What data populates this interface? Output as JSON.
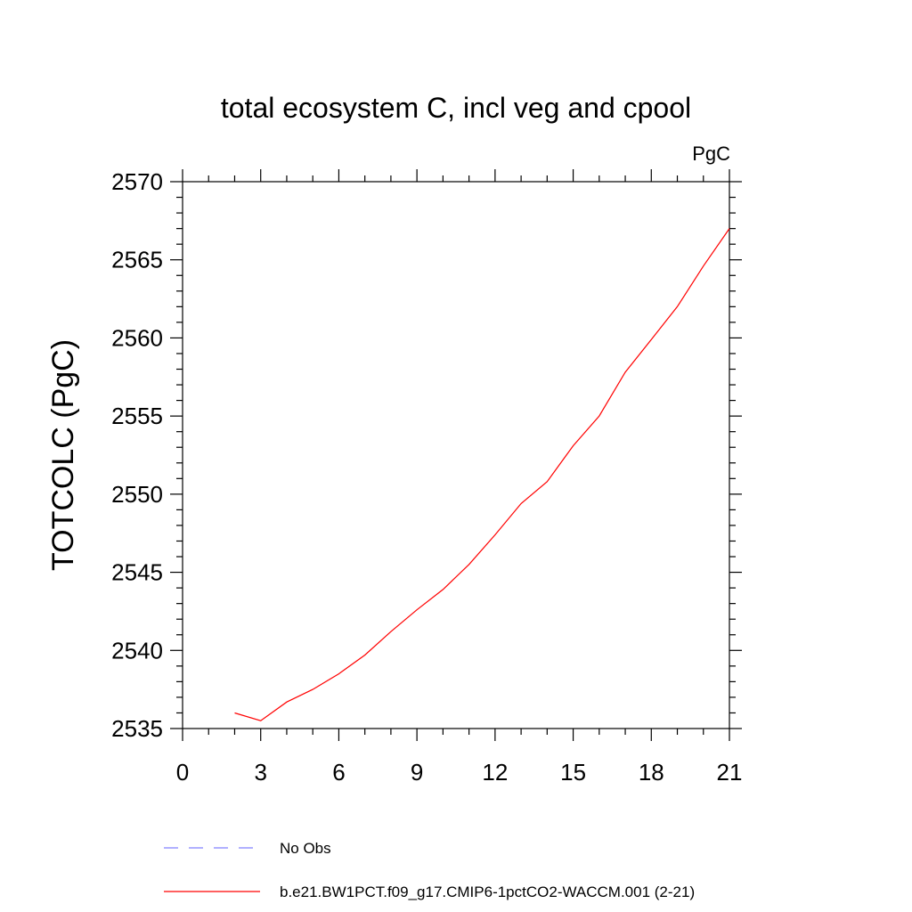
{
  "chart_data": {
    "type": "line",
    "title": "total ecosystem C, incl veg and cpool",
    "units_label": "PgC",
    "ylabel": "TOTCOLC  (PgC)",
    "xlabel": "",
    "xlim": [
      0,
      21
    ],
    "ylim": [
      2535,
      2570
    ],
    "xticks": [
      0,
      3,
      6,
      9,
      12,
      15,
      18,
      21
    ],
    "yticks": [
      2535,
      2540,
      2545,
      2550,
      2555,
      2560,
      2565,
      2570
    ],
    "grid": false,
    "legend_placement": "bottom",
    "series": [
      {
        "name": "No Obs",
        "color": "#8080ff",
        "style": "dashed",
        "x": [],
        "y": []
      },
      {
        "name": "b.e21.BW1PCT.f09_g17.CMIP6-1pctCO2-WACCM.001 (2-21)",
        "color": "#ff0000",
        "style": "solid",
        "x": [
          2,
          3,
          4,
          5,
          6,
          7,
          8,
          9,
          10,
          11,
          12,
          13,
          14,
          15,
          16,
          17,
          18,
          19,
          20,
          21
        ],
        "y": [
          2536.0,
          2535.5,
          2536.7,
          2537.5,
          2538.5,
          2539.7,
          2541.2,
          2542.6,
          2543.9,
          2545.5,
          2547.4,
          2549.4,
          2550.8,
          2553.1,
          2555.0,
          2557.8,
          2559.9,
          2562.0,
          2564.6,
          2567.0
        ]
      }
    ]
  }
}
